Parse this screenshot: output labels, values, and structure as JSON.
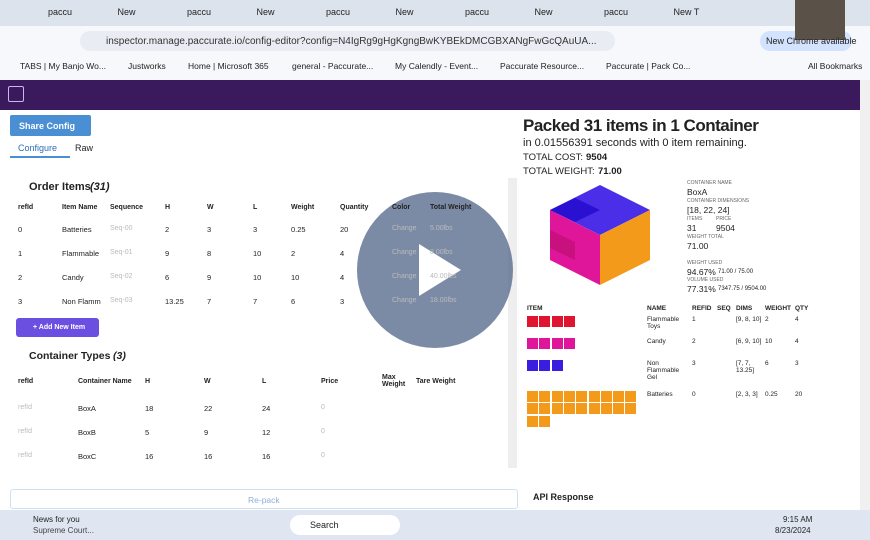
{
  "browser": {
    "tabs": [
      "paccu",
      "New",
      "paccu",
      "New",
      "paccu",
      "New",
      "paccu",
      "New",
      "paccu",
      "New T"
    ],
    "url": "inspector.manage.paccurate.io/config-editor?config=N4IgRg9gHgKgngBwKYBEkDMCGBXANgFwGcQAuUA...",
    "update": "New Chrome available",
    "bookmarks": [
      "TABS | My Banjo Wo...",
      "Justworks",
      "Home | Microsoft 365",
      "general - Paccurate...",
      "My Calendly - Event...",
      "Paccurate Resource...",
      "Paccurate | Pack Co..."
    ],
    "all_bookmarks": "All Bookmarks"
  },
  "app": {
    "share": "Share Config",
    "tabs": [
      "Configure",
      "Raw"
    ],
    "order_items": {
      "title": "Order Items",
      "count": "(31)",
      "columns": [
        "refId",
        "Item Name",
        "Sequence",
        "H",
        "W",
        "L",
        "Weight",
        "Quantity",
        "Color",
        "Total Weight"
      ],
      "rows": [
        [
          "0",
          "Batteries",
          "Seq-00",
          "2",
          "3",
          "3",
          "0.25",
          "20",
          "Change",
          "5.00lbs"
        ],
        [
          "1",
          "Flammable",
          "Seq-01",
          "9",
          "8",
          "10",
          "2",
          "4",
          "Change",
          "8.00lbs"
        ],
        [
          "2",
          "Candy",
          "Seq-02",
          "6",
          "9",
          "10",
          "10",
          "4",
          "Change",
          "40.00lbs"
        ],
        [
          "3",
          "Non Flamm",
          "Seq-03",
          "13.25",
          "7",
          "7",
          "6",
          "3",
          "Change",
          "18.00lbs"
        ]
      ],
      "add": "+ Add New Item"
    },
    "containers": {
      "title": "Container Types",
      "count": "(3)",
      "columns": [
        "refId",
        "Container Name",
        "H",
        "W",
        "L",
        "Price",
        "Max Weight",
        "Tare Weight"
      ],
      "rows": [
        [
          "refId",
          "BoxA",
          "18",
          "22",
          "24",
          "0"
        ],
        [
          "refId",
          "BoxB",
          "5",
          "9",
          "12",
          "0"
        ],
        [
          "refId",
          "BoxC",
          "16",
          "16",
          "16",
          "0"
        ]
      ]
    },
    "repack": "Re-pack"
  },
  "result": {
    "title": "Packed 31 items in 1 Container",
    "subtitle": "in 0.01556391 seconds with 0 item remaining.",
    "cost_label": "TOTAL COST:",
    "cost": "9504",
    "weight_label": "TOTAL WEIGHT:",
    "weight": "71.00",
    "info": [
      {
        "label": "CONTAINER NAME",
        "value": "BoxA"
      },
      {
        "label": "CONTAINER DIMENSIONS",
        "value": "[18, 22, 24]"
      },
      {
        "label": "ITEMS",
        "value": "31"
      },
      {
        "label": "PRICE",
        "value": "9504"
      },
      {
        "label": "WEIGHT TOTAL",
        "value": "71.00"
      },
      {
        "label": "WEIGHT USED",
        "value": "94.67%",
        "detail": "71.00 / 75.00"
      },
      {
        "label": "VOLUME USED",
        "value": "77.31%",
        "detail": "7347.75 / 9504.00"
      }
    ],
    "items": {
      "columns": [
        "ITEM",
        "NAME",
        "REFID",
        "SEQ",
        "DIMS",
        "WEIGHT",
        "QTY"
      ],
      "rows": [
        {
          "color": "#e0142e",
          "name": "Flammable Toys",
          "refid": "1",
          "dims": "[9, 8, 10]",
          "weight": "2",
          "qty": 4
        },
        {
          "color": "#e0169a",
          "name": "Candy",
          "refid": "2",
          "dims": "[6, 9, 10]",
          "weight": "10",
          "qty": 4
        },
        {
          "color": "#3a1ee0",
          "name": "Non Flammable Gel",
          "refid": "3",
          "dims": "[7, 7, 13.25]",
          "weight": "6",
          "qty": 3
        },
        {
          "color": "#f39a1a",
          "name": "Batteries",
          "refid": "0",
          "dims": "[2, 3, 3]",
          "weight": "0.25",
          "qty": 20
        }
      ]
    },
    "api": "API Response"
  },
  "taskbar": {
    "news": "News for you",
    "headline": "Supreme Court...",
    "search": "Search",
    "time": "9:15 AM",
    "date": "8/23/2024"
  }
}
